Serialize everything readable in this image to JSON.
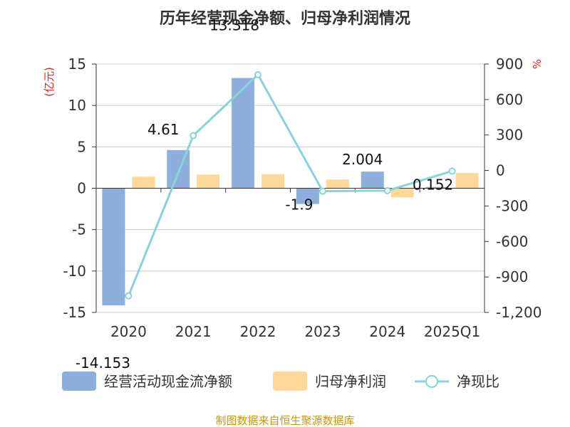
{
  "chart_data": {
    "type": "bar",
    "title": "历年经营现金净额、归母净利润情况",
    "categories": [
      "2020",
      "2021",
      "2022",
      "2023",
      "2024",
      "2025Q1"
    ],
    "series": [
      {
        "name": "经营活动现金流净额",
        "axis": "left",
        "kind": "bar",
        "values": [
          -14.153,
          4.61,
          13.318,
          -1.9,
          2.004,
          0.152
        ],
        "labels": [
          "-14.153",
          "4.61",
          "13.318",
          "-1.9",
          "2.004",
          "0.152"
        ]
      },
      {
        "name": "归母净利润",
        "axis": "left",
        "kind": "bar",
        "values": [
          1.4,
          1.65,
          1.7,
          1.05,
          -1.1,
          1.85
        ]
      },
      {
        "name": "净现比",
        "axis": "right",
        "kind": "line",
        "values": [
          -1060,
          295,
          810,
          -175,
          -170,
          -5
        ]
      }
    ],
    "ylabel": "(亿元)",
    "y2label": "%",
    "ylim": [
      -15,
      15
    ],
    "yticks": [
      15,
      10,
      5,
      0,
      -5,
      -10,
      -15
    ],
    "y2lim": [
      -1200,
      900
    ],
    "y2ticks": [
      "900",
      "600",
      "300",
      "0",
      "-300",
      "-600",
      "-900",
      "-1,200"
    ],
    "colors": {
      "bar1": "#8eaedb",
      "bar2": "#fdd899",
      "line": "#88d3d8",
      "grid": "#cccccc",
      "axis": "#333333",
      "unit": "#e02020"
    },
    "grid": true,
    "legend_position": "bottom"
  },
  "source": "制图数据来自恒生聚源数据库"
}
